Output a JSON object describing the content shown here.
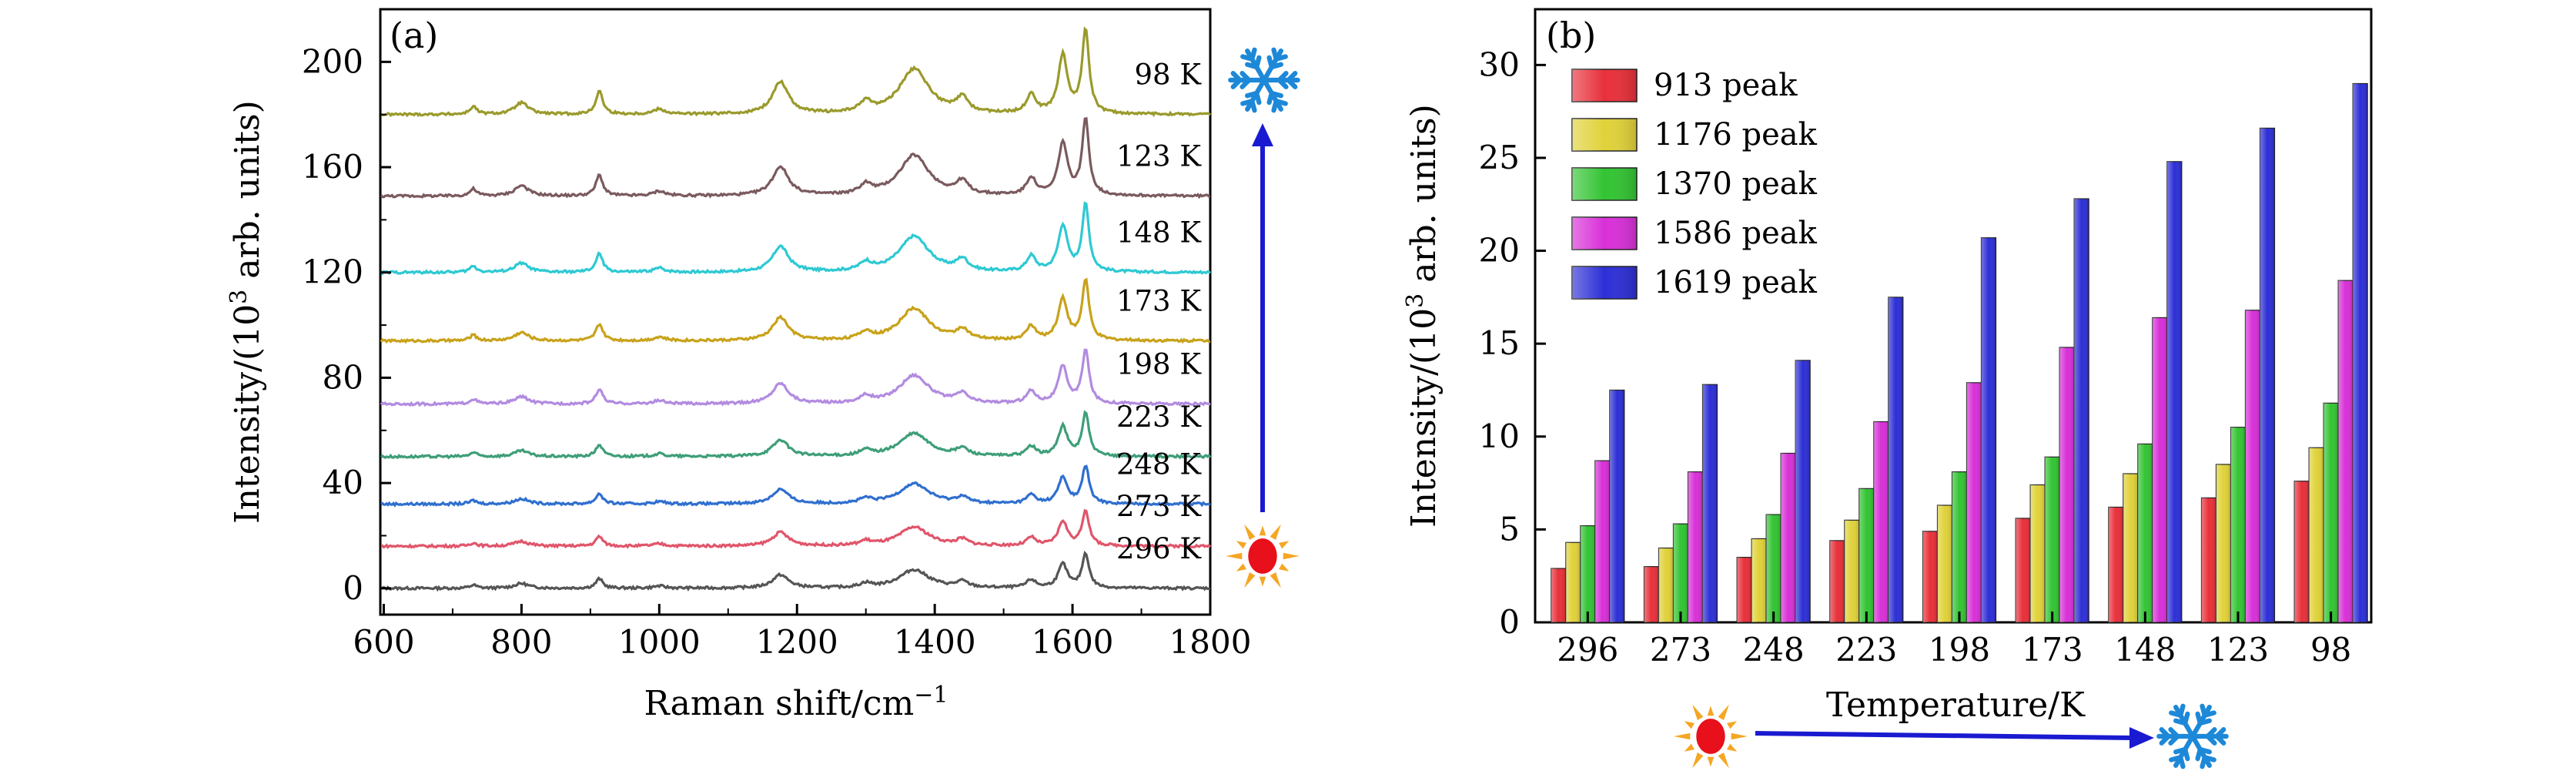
{
  "chart_data": [
    {
      "panel": "(a)",
      "type": "line",
      "xlabel": "Raman shift/cm",
      "xlabel_sup": "−1",
      "ylabel_pre": "Intensity/(10",
      "ylabel_sup": "3",
      "ylabel_post": " arb. units)",
      "xlim": [
        595,
        1800
      ],
      "ylim": [
        -10,
        220
      ],
      "xticks": [
        600,
        800,
        1000,
        1200,
        1400,
        1600,
        1800
      ],
      "yticks": [
        0,
        40,
        80,
        120,
        160,
        200
      ],
      "series": [
        {
          "name": "296 K",
          "offset": 0,
          "scale": 1.0,
          "color": "#555555"
        },
        {
          "name": "273 K",
          "offset": 16,
          "scale": 1.03,
          "color": "#e0556a"
        },
        {
          "name": "248 K",
          "offset": 32,
          "scale": 1.1,
          "color": "#2f6fcf"
        },
        {
          "name": "223 K",
          "offset": 50,
          "scale": 1.25,
          "color": "#3e9e78"
        },
        {
          "name": "198 K",
          "offset": 70,
          "scale": 1.55,
          "color": "#b28be0"
        },
        {
          "name": "173 K",
          "offset": 94,
          "scale": 1.75,
          "color": "#c8a21a"
        },
        {
          "name": "148 K",
          "offset": 120,
          "scale": 1.95,
          "color": "#2ec9d3"
        },
        {
          "name": "123 K",
          "offset": 149,
          "scale": 2.2,
          "color": "#7a5a5e"
        },
        {
          "name": "98 K",
          "offset": 180,
          "scale": 2.45,
          "color": "#9a9a2c"
        }
      ],
      "peaks": [
        {
          "x": 730,
          "height": 1.2,
          "width": 6
        },
        {
          "x": 800,
          "height": 1.8,
          "width": 12
        },
        {
          "x": 913,
          "height": 3.6,
          "width": 6
        },
        {
          "x": 1000,
          "height": 0.8,
          "width": 10
        },
        {
          "x": 1176,
          "height": 5.0,
          "width": 14
        },
        {
          "x": 1300,
          "height": 1.6,
          "width": 10
        },
        {
          "x": 1370,
          "height": 7.0,
          "width": 26
        },
        {
          "x": 1440,
          "height": 2.2,
          "width": 10
        },
        {
          "x": 1540,
          "height": 3.0,
          "width": 8
        },
        {
          "x": 1586,
          "height": 9.0,
          "width": 8
        },
        {
          "x": 1619,
          "height": 13.0,
          "width": 6
        }
      ]
    },
    {
      "panel": "(b)",
      "type": "bar",
      "xlabel": "Temperature/K",
      "ylabel_pre": "Intensity/(10",
      "ylabel_sup": "3",
      "ylabel_post": " arb. units)",
      "ylim": [
        0,
        33
      ],
      "yticks": [
        0,
        5,
        10,
        15,
        20,
        25,
        30
      ],
      "categories": [
        "296",
        "273",
        "248",
        "223",
        "198",
        "173",
        "148",
        "123",
        "98"
      ],
      "legend_position": "top-left",
      "series": [
        {
          "name": "913 peak",
          "color": "#e8303a",
          "values": [
            2.9,
            3.0,
            3.5,
            4.4,
            4.9,
            5.6,
            6.2,
            6.7,
            7.6
          ]
        },
        {
          "name": "1176 peak",
          "color": "#e0d23a",
          "values": [
            4.3,
            4.0,
            4.5,
            5.5,
            6.3,
            7.4,
            8.0,
            8.5,
            9.4
          ]
        },
        {
          "name": "1370 peak",
          "color": "#33c433",
          "values": [
            5.2,
            5.3,
            5.8,
            7.2,
            8.1,
            8.9,
            9.6,
            10.5,
            11.8
          ]
        },
        {
          "name": "1586 peak",
          "color": "#d830d8",
          "values": [
            8.7,
            8.1,
            9.1,
            10.8,
            12.9,
            14.8,
            16.4,
            16.8,
            18.4
          ]
        },
        {
          "name": "1619 peak",
          "color": "#2d2fd6",
          "values": [
            12.5,
            12.8,
            14.1,
            17.5,
            20.7,
            22.8,
            24.8,
            26.6,
            29.0
          ]
        }
      ]
    }
  ],
  "icons": {
    "hot": "sun-icon",
    "cold": "snowflake-icon",
    "arrow_color": "#1a1ad0",
    "sun_color": "#e8101a",
    "sun_ray_color": "#f5a623",
    "snowflake_color": "#1e88d8"
  }
}
